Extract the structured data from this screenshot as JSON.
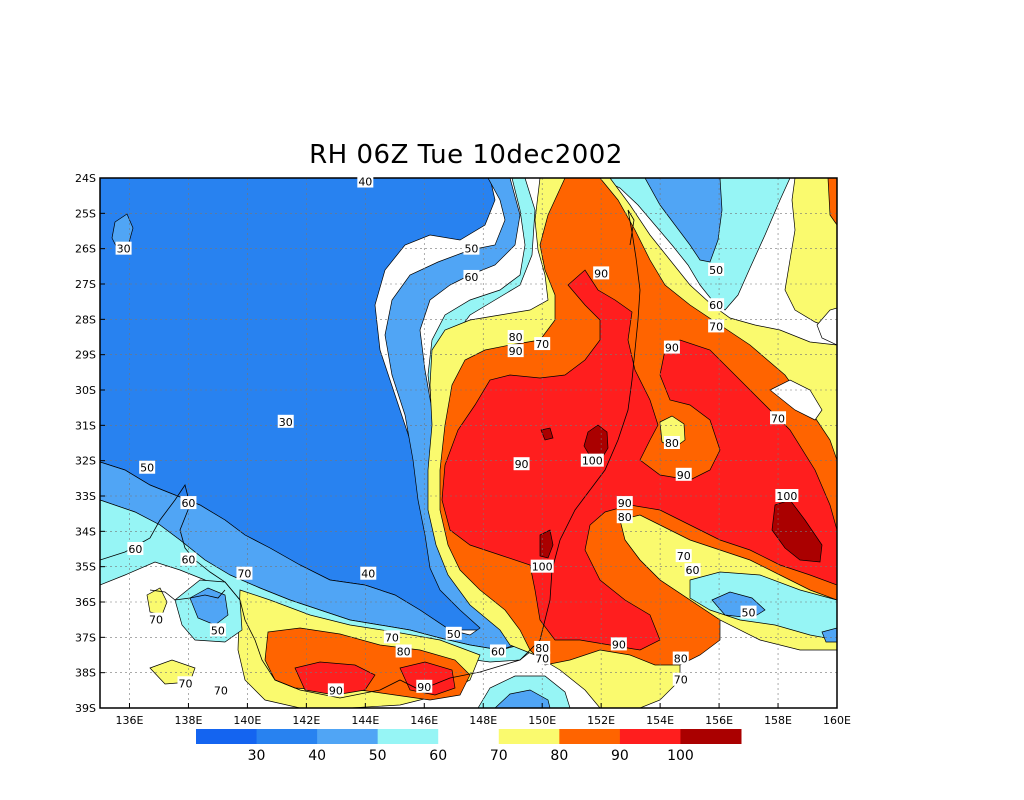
{
  "title": "RH 06Z Tue 10dec2002",
  "map": {
    "lon_ticks": [
      "136E",
      "138E",
      "140E",
      "142E",
      "144E",
      "146E",
      "148E",
      "150E",
      "152E",
      "154E",
      "156E",
      "158E",
      "160E"
    ],
    "lat_ticks": [
      "24S",
      "25S",
      "26S",
      "27S",
      "28S",
      "29S",
      "30S",
      "31S",
      "32S",
      "33S",
      "34S",
      "35S",
      "36S",
      "37S",
      "38S",
      "39S"
    ],
    "lon_range": [
      135,
      160
    ],
    "lat_range": [
      -24,
      -39
    ],
    "contour_labels": [
      {
        "text": "30",
        "lon": 135.8,
        "lat": -26.0
      },
      {
        "text": "30",
        "lon": 141.3,
        "lat": -30.9
      },
      {
        "text": "40",
        "lon": 144.0,
        "lat": -24.1
      },
      {
        "text": "40",
        "lon": 144.1,
        "lat": -35.2
      },
      {
        "text": "50",
        "lon": 147.6,
        "lat": -26.0
      },
      {
        "text": "50",
        "lon": 136.6,
        "lat": -32.2
      },
      {
        "text": "50",
        "lon": 139.0,
        "lat": -36.8
      },
      {
        "text": "50",
        "lon": 147.0,
        "lat": -36.9
      },
      {
        "text": "50",
        "lon": 155.9,
        "lat": -26.6
      },
      {
        "text": "50",
        "lon": 157.0,
        "lat": -36.3
      },
      {
        "text": "60",
        "lon": 147.6,
        "lat": -26.8
      },
      {
        "text": "60",
        "lon": 138.0,
        "lat": -33.2
      },
      {
        "text": "60",
        "lon": 136.2,
        "lat": -34.5
      },
      {
        "text": "60",
        "lon": 138.0,
        "lat": -34.8
      },
      {
        "text": "60",
        "lon": 148.5,
        "lat": -37.4
      },
      {
        "text": "60",
        "lon": 155.9,
        "lat": -27.6
      },
      {
        "text": "60",
        "lon": 155.1,
        "lat": -35.1
      },
      {
        "text": "70",
        "lon": 150.0,
        "lat": -28.7
      },
      {
        "text": "70",
        "lon": 139.9,
        "lat": -35.2
      },
      {
        "text": "70",
        "lon": 136.9,
        "lat": -36.5
      },
      {
        "text": "70",
        "lon": 144.9,
        "lat": -37.0
      },
      {
        "text": "70",
        "lon": 137.9,
        "lat": -38.3
      },
      {
        "text": "70",
        "lon": 139.1,
        "lat": -38.5
      },
      {
        "text": "70",
        "lon": 150.0,
        "lat": -37.6
      },
      {
        "text": "70",
        "lon": 155.9,
        "lat": -28.2
      },
      {
        "text": "70",
        "lon": 158.0,
        "lat": -30.8
      },
      {
        "text": "70",
        "lon": 154.8,
        "lat": -34.7
      },
      {
        "text": "70",
        "lon": 154.7,
        "lat": -38.2
      },
      {
        "text": "80",
        "lon": 149.1,
        "lat": -28.5
      },
      {
        "text": "80",
        "lon": 145.3,
        "lat": -37.4
      },
      {
        "text": "80",
        "lon": 150.0,
        "lat": -37.3
      },
      {
        "text": "80",
        "lon": 154.4,
        "lat": -31.5
      },
      {
        "text": "80",
        "lon": 152.8,
        "lat": -33.6
      },
      {
        "text": "80",
        "lon": 154.7,
        "lat": -37.6
      },
      {
        "text": "90",
        "lon": 152.0,
        "lat": -26.7
      },
      {
        "text": "90",
        "lon": 149.1,
        "lat": -28.9
      },
      {
        "text": "90",
        "lon": 149.3,
        "lat": -32.1
      },
      {
        "text": "90",
        "lon": 154.4,
        "lat": -28.8
      },
      {
        "text": "90",
        "lon": 154.8,
        "lat": -32.4
      },
      {
        "text": "90",
        "lon": 152.8,
        "lat": -33.2
      },
      {
        "text": "90",
        "lon": 152.6,
        "lat": -37.2
      },
      {
        "text": "90",
        "lon": 143.0,
        "lat": -38.5
      },
      {
        "text": "90",
        "lon": 146.0,
        "lat": -38.4
      },
      {
        "text": "100",
        "lon": 151.7,
        "lat": -32.0
      },
      {
        "text": "100",
        "lon": 150.0,
        "lat": -35.0
      },
      {
        "text": "100",
        "lon": 158.3,
        "lat": -33.0
      }
    ]
  },
  "colorbar": {
    "bins": [
      {
        "color": "#1464f0"
      },
      {
        "color": "#2882f0"
      },
      {
        "color": "#50a5f5"
      },
      {
        "color": "#96f5f5"
      },
      {
        "color": "#ffffff"
      },
      {
        "color": "#fafa6e"
      },
      {
        "color": "#ff6400"
      },
      {
        "color": "#ff1e1e"
      },
      {
        "color": "#aa0000"
      }
    ],
    "labels": [
      "30",
      "40",
      "50",
      "60",
      "70",
      "80",
      "90",
      "100"
    ]
  }
}
